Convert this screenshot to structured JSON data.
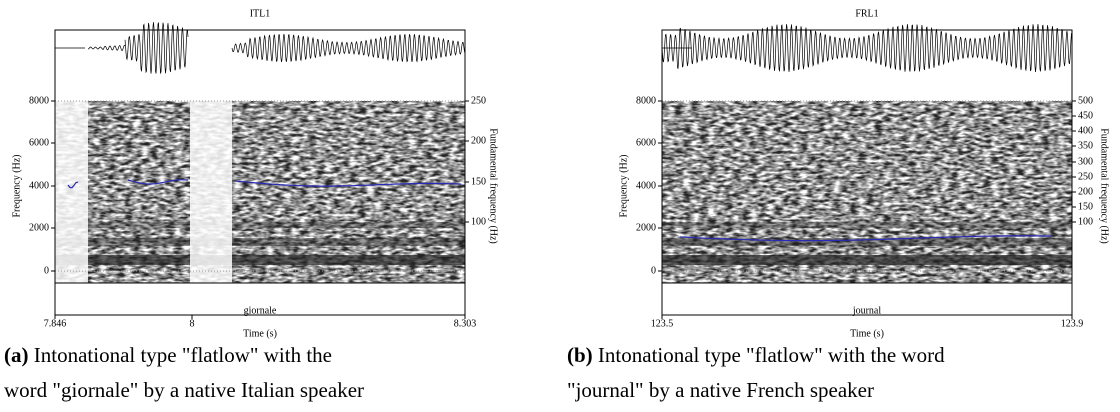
{
  "panels": [
    {
      "title": "ITL1",
      "y_label": "Frequency (Hz)",
      "y2_label": "Fundamental frequency (Hz)",
      "yticks": [
        "8000",
        "6000",
        "4000",
        "2000",
        "0"
      ],
      "y2ticks": [
        "250",
        "200",
        "150",
        "100"
      ],
      "word": "giornale",
      "xticks": [
        "7.846",
        "8",
        "8.303"
      ],
      "x_label": "Time (s)",
      "caption_tag": "(a)",
      "caption": "Intonational type \"flatlow\" with the word \"giornale\" by a native Italian speaker"
    },
    {
      "title": "FRL1",
      "y_label": "Frequency (Hz)",
      "y2_label": "Fundamental frequency (Hz)",
      "yticks": [
        "8000",
        "6000",
        "4000",
        "2000",
        "0"
      ],
      "y2ticks": [
        "500",
        "450",
        "400",
        "350",
        "300",
        "250",
        "200",
        "150",
        "100"
      ],
      "word": "journal",
      "xticks": [
        "123.5",
        "123.9"
      ],
      "x_label": "Time (s)",
      "caption_tag": "(b)",
      "caption": "Intonational type \"flatlow\" with the word \"journal\" by a native French speaker"
    }
  ]
}
